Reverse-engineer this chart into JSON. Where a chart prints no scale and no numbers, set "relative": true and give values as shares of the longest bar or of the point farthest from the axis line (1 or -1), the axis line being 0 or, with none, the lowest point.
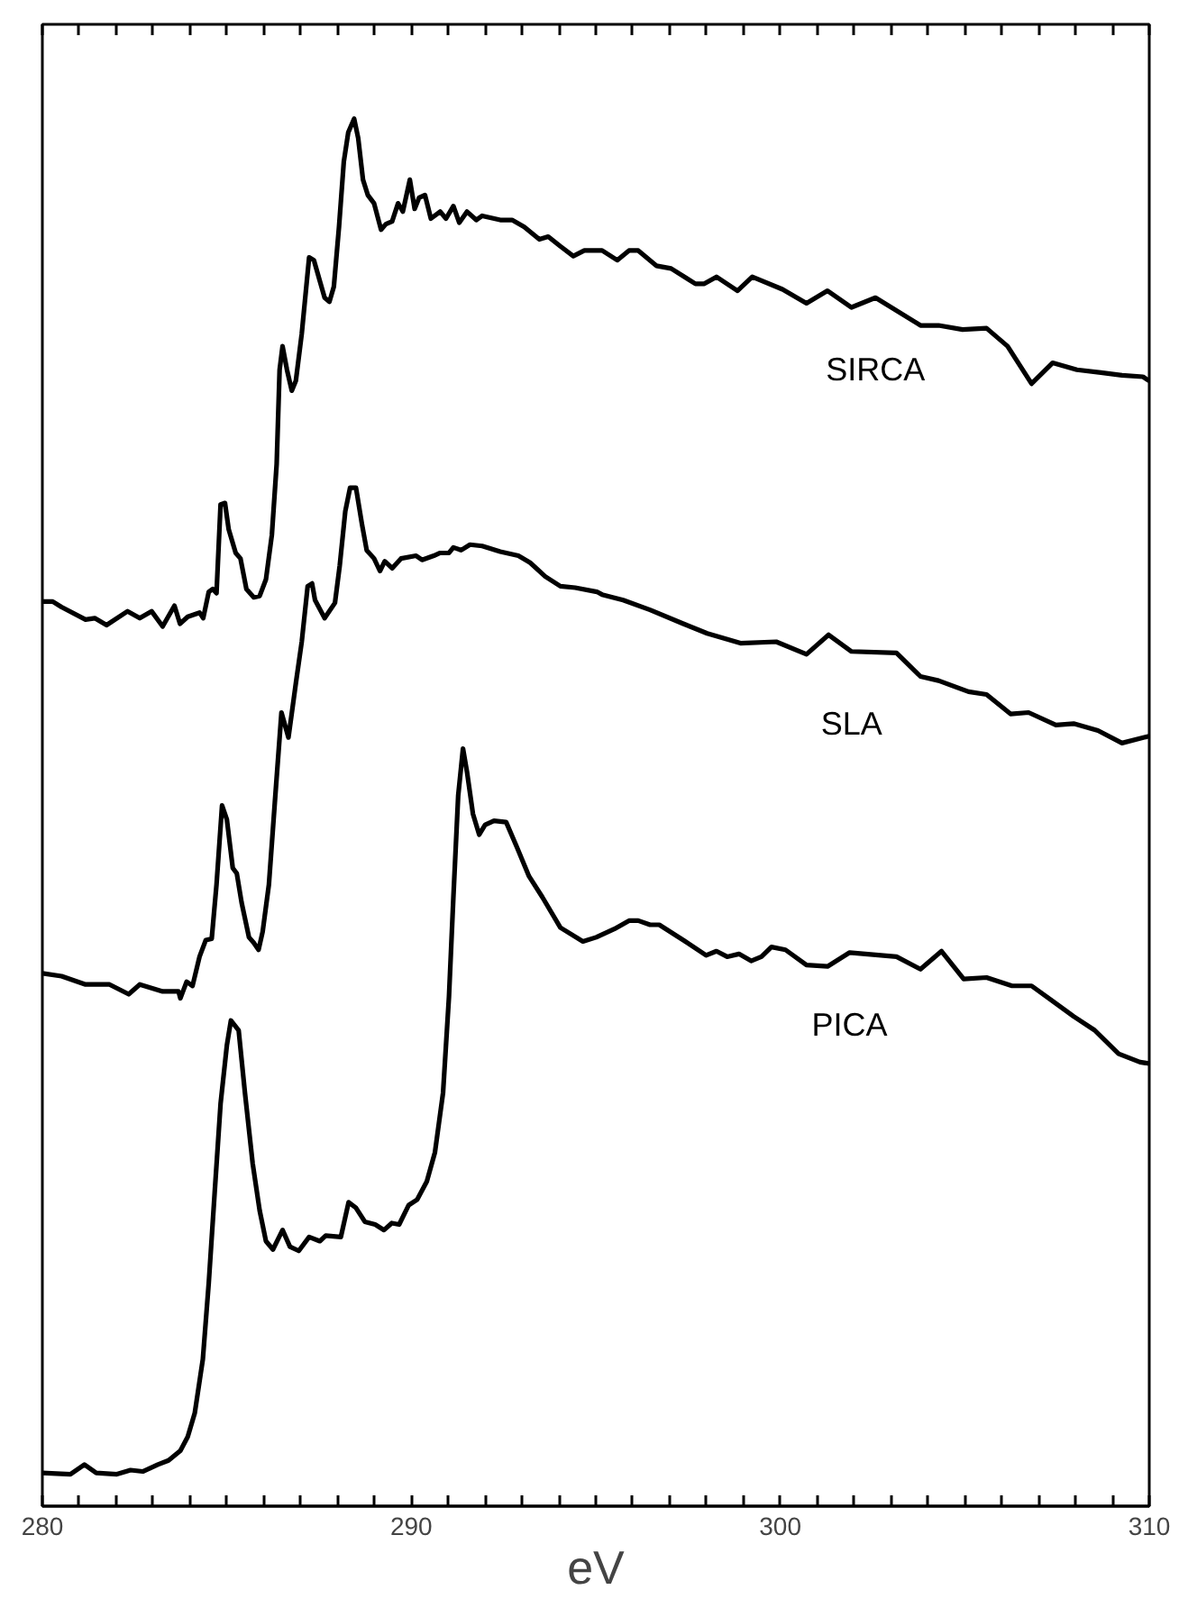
{
  "chart_data": {
    "type": "line",
    "relative": true,
    "xlabel": "eV",
    "xlim": [
      280,
      310
    ],
    "xticks": [
      280,
      {
        "value": 281,
        "label": null
      },
      {
        "value": 282,
        "label": null
      },
      {
        "value": 283,
        "label": null
      },
      {
        "value": 284,
        "label": null
      },
      {
        "value": 285,
        "label": null
      },
      {
        "value": 286,
        "label": null
      },
      {
        "value": 287,
        "label": null
      },
      {
        "value": 288,
        "label": null
      },
      {
        "value": 289,
        "label": null
      },
      290,
      {
        "value": 291,
        "label": null
      },
      {
        "value": 292,
        "label": null
      },
      {
        "value": 293,
        "label": null
      },
      {
        "value": 294,
        "label": null
      },
      {
        "value": 295,
        "label": null
      },
      {
        "value": 296,
        "label": null
      },
      {
        "value": 297,
        "label": null
      },
      {
        "value": 298,
        "label": null
      },
      {
        "value": 299,
        "label": null
      },
      300,
      {
        "value": 301,
        "label": null
      },
      {
        "value": 302,
        "label": null
      },
      {
        "value": 303,
        "label": null
      },
      {
        "value": 304,
        "label": null
      },
      {
        "value": 305,
        "label": null
      },
      {
        "value": 306,
        "label": null
      },
      {
        "value": 307,
        "label": null
      },
      {
        "value": 308,
        "label": null
      },
      {
        "value": 309,
        "label": null
      },
      310
    ],
    "grid": false,
    "legend": false,
    "marker": "none",
    "line_style": "solid",
    "series": [
      {
        "name": "SIRCA",
        "color": "#000000",
        "x": [
          280.0,
          280.28,
          280.52,
          281.17,
          281.42,
          281.74,
          282.31,
          282.64,
          282.96,
          283.26,
          283.58,
          283.73,
          283.94,
          284.26,
          284.36,
          284.51,
          284.62,
          284.72,
          284.83,
          284.95,
          285.05,
          285.24,
          285.37,
          285.53,
          285.73,
          285.89,
          286.06,
          286.22,
          286.35,
          286.43,
          286.51,
          286.63,
          286.76,
          286.87,
          287.03,
          287.23,
          287.36,
          287.52,
          287.65,
          287.78,
          287.9,
          288.04,
          288.17,
          288.29,
          288.45,
          288.56,
          288.69,
          288.82,
          288.99,
          289.18,
          289.31,
          289.48,
          289.64,
          289.77,
          289.96,
          290.09,
          290.21,
          290.37,
          290.53,
          290.78,
          290.94,
          291.14,
          291.3,
          291.51,
          291.76,
          291.92,
          292.41,
          292.73,
          293.06,
          293.47,
          293.71,
          294.04,
          294.39,
          294.69,
          295.17,
          295.58,
          295.9,
          296.15,
          296.64,
          297.04,
          297.7,
          297.94,
          298.27,
          298.84,
          299.24,
          300.06,
          300.71,
          301.28,
          301.93,
          302.58,
          303.8,
          304.29,
          304.94,
          305.59,
          306.16,
          306.81,
          307.38,
          308.04,
          308.69,
          309.26,
          309.83,
          310.0
        ],
        "values": [
          0.652,
          0.652,
          0.648,
          0.639,
          0.64,
          0.635,
          0.645,
          0.64,
          0.645,
          0.634,
          0.649,
          0.636,
          0.641,
          0.644,
          0.64,
          0.659,
          0.661,
          0.658,
          0.722,
          0.723,
          0.704,
          0.687,
          0.683,
          0.661,
          0.655,
          0.656,
          0.668,
          0.7,
          0.751,
          0.819,
          0.836,
          0.819,
          0.804,
          0.811,
          0.845,
          0.9,
          0.898,
          0.883,
          0.871,
          0.868,
          0.879,
          0.922,
          0.969,
          0.99,
          1,
          0.986,
          0.956,
          0.945,
          0.939,
          0.92,
          0.924,
          0.926,
          0.939,
          0.933,
          0.956,
          0.935,
          0.943,
          0.945,
          0.928,
          0.933,
          0.928,
          0.937,
          0.925,
          0.933,
          0.927,
          0.93,
          0.927,
          0.927,
          0.922,
          0.913,
          0.915,
          0.908,
          0.901,
          0.905,
          0.905,
          0.898,
          0.905,
          0.905,
          0.894,
          0.892,
          0.881,
          0.881,
          0.886,
          0.876,
          0.886,
          0.877,
          0.867,
          0.876,
          0.864,
          0.871,
          0.851,
          0.851,
          0.848,
          0.849,
          0.836,
          0.809,
          0.824,
          0.819,
          0.817,
          0.815,
          0.814,
          0.811
        ]
      },
      {
        "name": "SLA",
        "color": "#000000",
        "x": [
          280.0,
          280.52,
          281.17,
          281.82,
          282.34,
          282.64,
          283.26,
          283.69,
          283.74,
          283.91,
          284.07,
          284.26,
          284.43,
          284.59,
          284.72,
          284.87,
          285.0,
          285.16,
          285.27,
          285.4,
          285.6,
          285.73,
          285.86,
          285.97,
          286.14,
          286.3,
          286.48,
          286.67,
          286.87,
          287.03,
          287.19,
          287.31,
          287.39,
          287.65,
          287.93,
          288.06,
          288.21,
          288.34,
          288.5,
          288.66,
          288.79,
          288.99,
          289.15,
          289.28,
          289.48,
          289.72,
          290.13,
          290.29,
          290.61,
          290.78,
          291.02,
          291.14,
          291.35,
          291.59,
          291.92,
          292.41,
          292.9,
          293.22,
          293.63,
          294.04,
          294.44,
          295.03,
          295.17,
          295.74,
          296.47,
          297.37,
          298.02,
          298.92,
          299.89,
          300.71,
          301.31,
          301.93,
          303.15,
          303.8,
          304.29,
          305.1,
          305.59,
          306.24,
          306.73,
          307.47,
          307.95,
          308.61,
          309.26,
          310.0
        ],
        "values": [
          0.384,
          0.382,
          0.376,
          0.376,
          0.369,
          0.376,
          0.371,
          0.371,
          0.366,
          0.378,
          0.375,
          0.396,
          0.408,
          0.409,
          0.448,
          0.505,
          0.495,
          0.46,
          0.456,
          0.435,
          0.41,
          0.406,
          0.401,
          0.414,
          0.448,
          0.507,
          0.572,
          0.554,
          0.593,
          0.623,
          0.663,
          0.665,
          0.653,
          0.64,
          0.651,
          0.678,
          0.717,
          0.734,
          0.734,
          0.708,
          0.689,
          0.683,
          0.674,
          0.681,
          0.676,
          0.683,
          0.685,
          0.682,
          0.685,
          0.687,
          0.687,
          0.691,
          0.689,
          0.693,
          0.692,
          0.688,
          0.685,
          0.68,
          0.67,
          0.663,
          0.662,
          0.659,
          0.657,
          0.653,
          0.646,
          0.636,
          0.629,
          0.622,
          0.623,
          0.614,
          0.628,
          0.616,
          0.615,
          0.598,
          0.595,
          0.587,
          0.585,
          0.571,
          0.572,
          0.563,
          0.564,
          0.559,
          0.55,
          0.555
        ]
      },
      {
        "name": "PICA",
        "color": "#000000",
        "x": [
          280.0,
          280.76,
          281.14,
          281.46,
          282.02,
          282.39,
          282.72,
          283.13,
          283.42,
          283.74,
          283.94,
          284.13,
          284.35,
          284.51,
          284.67,
          284.83,
          285.0,
          285.11,
          285.32,
          285.49,
          285.7,
          285.89,
          286.06,
          286.25,
          286.51,
          286.71,
          286.95,
          287.23,
          287.52,
          287.68,
          288.09,
          288.3,
          288.5,
          288.74,
          289.02,
          289.26,
          289.47,
          289.67,
          289.93,
          290.16,
          290.42,
          290.64,
          290.86,
          291.02,
          291.14,
          291.27,
          291.4,
          291.51,
          291.67,
          291.84,
          292.0,
          292.24,
          292.57,
          292.86,
          293.19,
          293.55,
          294.04,
          294.65,
          295.01,
          295.5,
          295.9,
          296.15,
          296.47,
          296.72,
          297.37,
          297.99,
          298.27,
          298.56,
          298.88,
          299.21,
          299.49,
          299.76,
          300.14,
          300.71,
          301.28,
          301.88,
          303.15,
          303.8,
          304.37,
          304.97,
          305.59,
          306.28,
          306.81,
          307.38,
          307.95,
          308.52,
          309.17,
          309.75,
          310.0
        ],
        "values": [
          0.024,
          0.023,
          0.03,
          0.024,
          0.023,
          0.026,
          0.025,
          0.03,
          0.033,
          0.04,
          0.05,
          0.067,
          0.106,
          0.161,
          0.226,
          0.29,
          0.332,
          0.35,
          0.343,
          0.298,
          0.247,
          0.213,
          0.191,
          0.185,
          0.199,
          0.187,
          0.184,
          0.194,
          0.191,
          0.195,
          0.194,
          0.219,
          0.215,
          0.205,
          0.203,
          0.199,
          0.204,
          0.203,
          0.217,
          0.221,
          0.234,
          0.255,
          0.298,
          0.367,
          0.439,
          0.512,
          0.546,
          0.529,
          0.499,
          0.484,
          0.491,
          0.494,
          0.493,
          0.475,
          0.454,
          0.439,
          0.417,
          0.407,
          0.41,
          0.416,
          0.422,
          0.422,
          0.419,
          0.419,
          0.408,
          0.397,
          0.4,
          0.396,
          0.398,
          0.393,
          0.396,
          0.403,
          0.401,
          0.39,
          0.389,
          0.399,
          0.396,
          0.387,
          0.4,
          0.38,
          0.381,
          0.375,
          0.375,
          0.364,
          0.353,
          0.343,
          0.326,
          0.32,
          0.319
        ]
      }
    ]
  }
}
